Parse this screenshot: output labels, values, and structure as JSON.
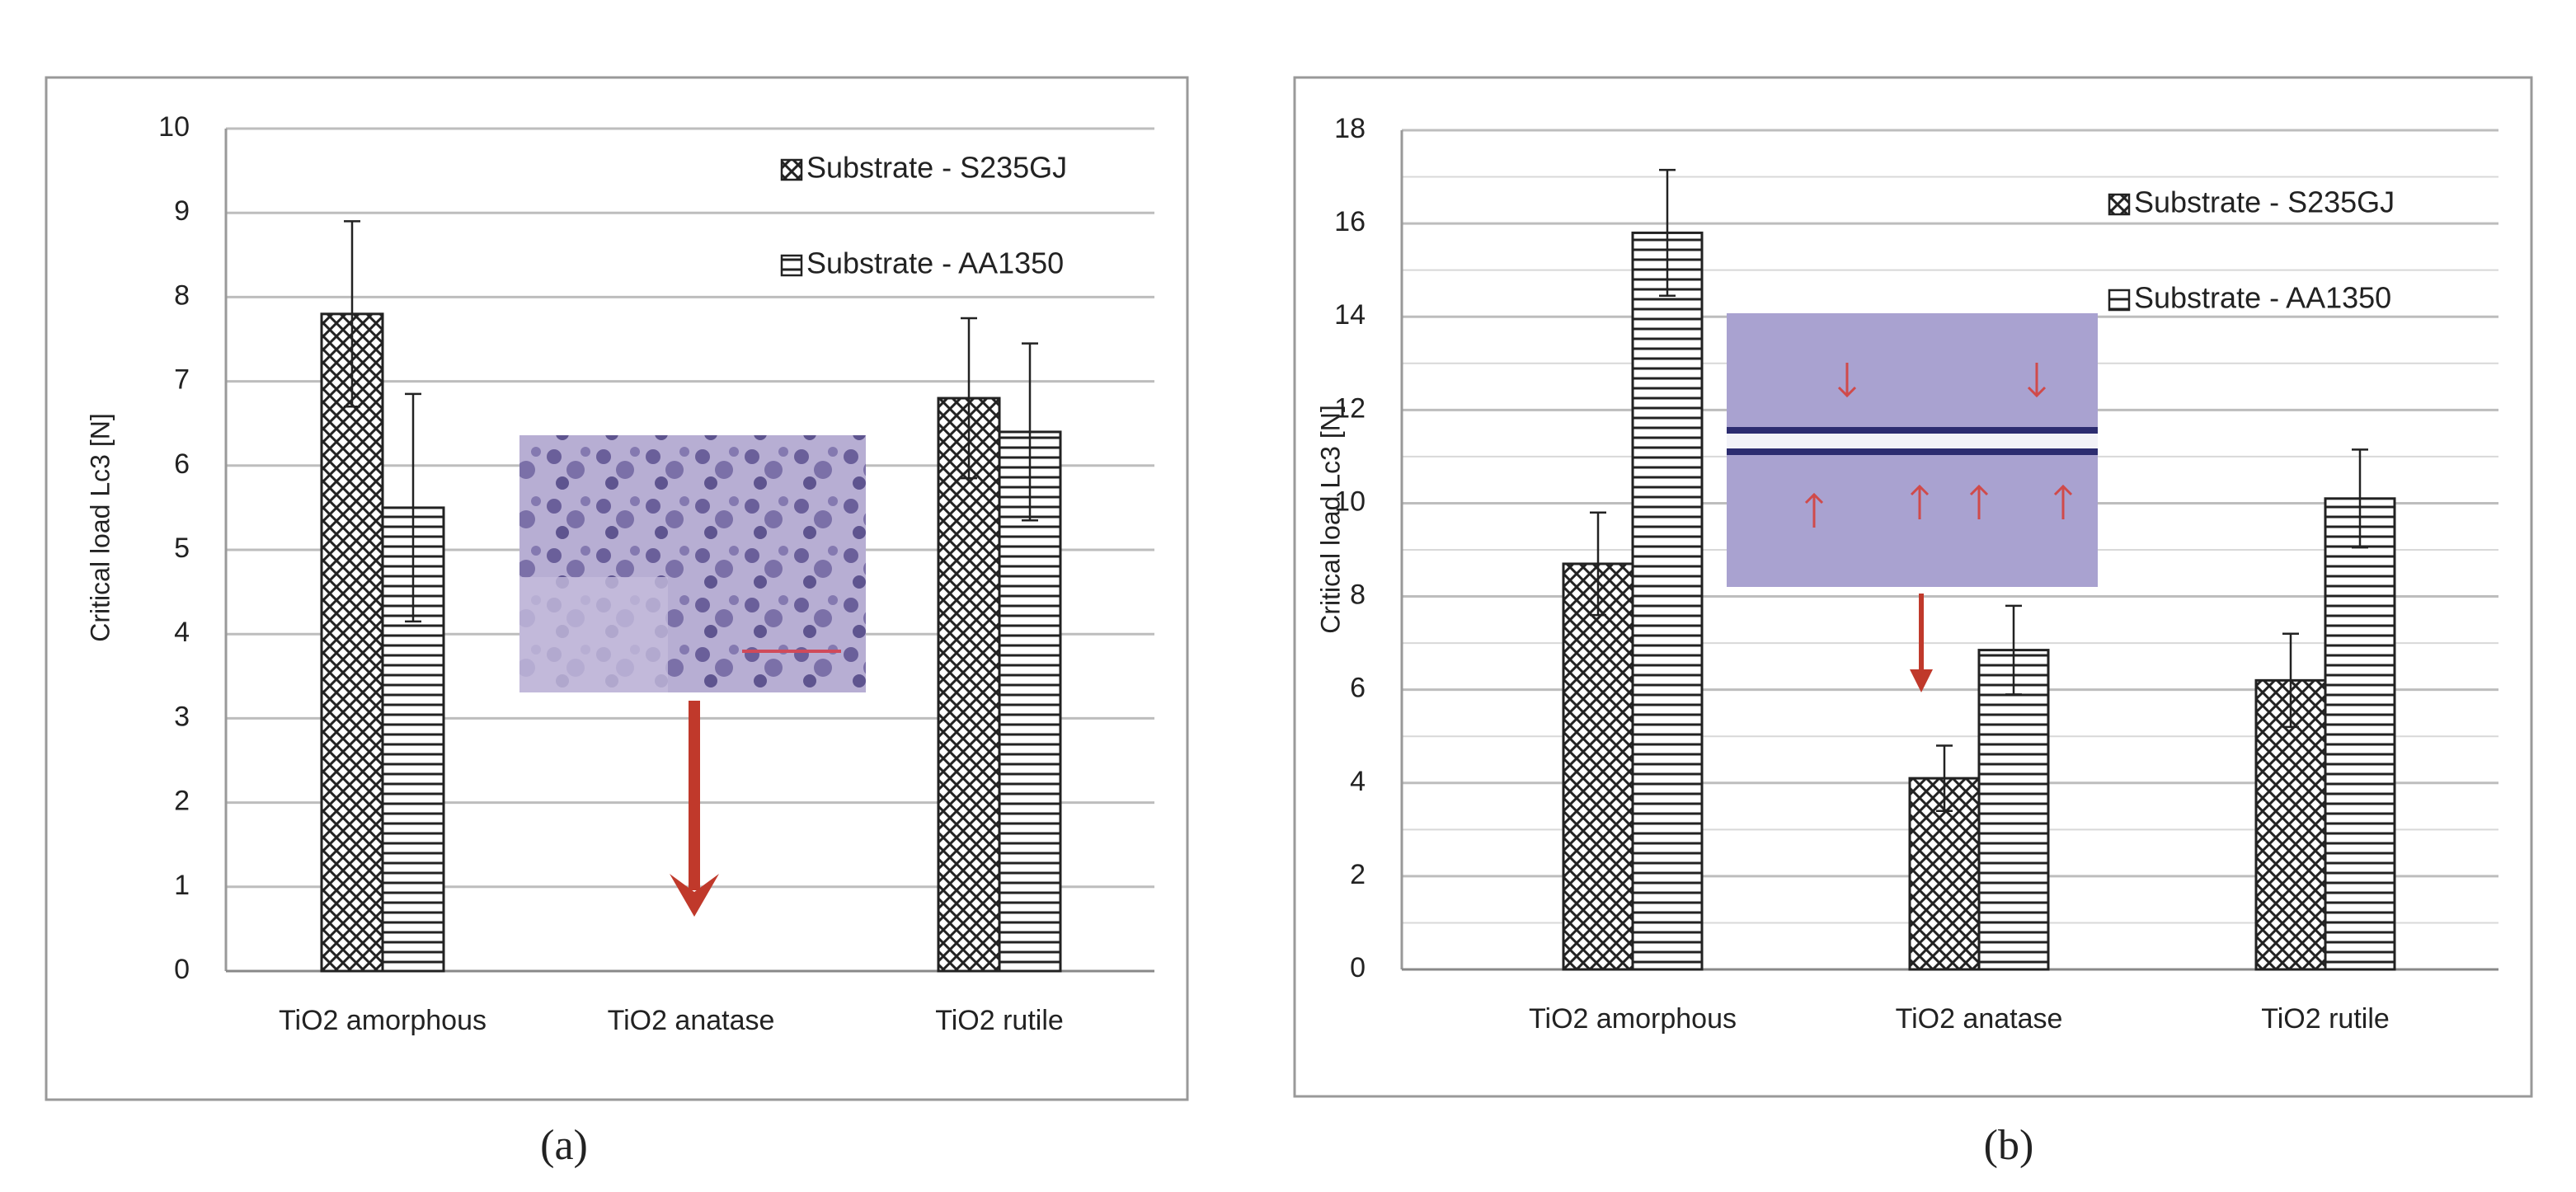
{
  "chart_data": [
    {
      "type": "bar",
      "caption": "(a)",
      "y_label": "Critical load Lc3 [N]",
      "categories": [
        "TiO2 amorphous",
        "TiO2 anatase",
        "TiO2 rutile"
      ],
      "series": [
        {
          "name": "Substrate - S235GJ",
          "color": "#222222",
          "pattern": "crosshatch",
          "values": [
            7.8,
            null,
            6.8
          ],
          "errors": [
            1.1,
            null,
            0.95
          ]
        },
        {
          "name": "Substrate - AA1350",
          "color": "#222222",
          "pattern": "horizontal",
          "values": [
            5.5,
            null,
            6.4
          ],
          "errors": [
            1.35,
            null,
            1.05
          ]
        }
      ],
      "ylim": [
        0,
        10
      ],
      "yticks": [
        0,
        1,
        2,
        3,
        4,
        5,
        6,
        7,
        8,
        9,
        10
      ],
      "grid": true,
      "minor_grid": false,
      "legend": "upper right"
    },
    {
      "type": "bar",
      "caption": "(b)",
      "y_label": "Critical load Lc3 [N]",
      "categories": [
        "TiO2 amorphous",
        "TiO2 anatase",
        "TiO2 rutile"
      ],
      "series": [
        {
          "name": "Substrate - S235GJ",
          "color": "#222222",
          "pattern": "crosshatch",
          "values": [
            8.7,
            4.1,
            6.2
          ],
          "errors": [
            1.1,
            0.7,
            1.0
          ]
        },
        {
          "name": "Substrate - AA1350",
          "color": "#222222",
          "pattern": "horizontal",
          "values": [
            15.8,
            6.85,
            10.1
          ],
          "errors": [
            1.35,
            0.95,
            1.05
          ]
        }
      ],
      "ylim": [
        0,
        18
      ],
      "yticks": [
        0,
        2,
        4,
        6,
        8,
        10,
        12,
        14,
        16,
        18
      ],
      "grid": true,
      "minor_grid": true,
      "legend": "upper right"
    }
  ]
}
